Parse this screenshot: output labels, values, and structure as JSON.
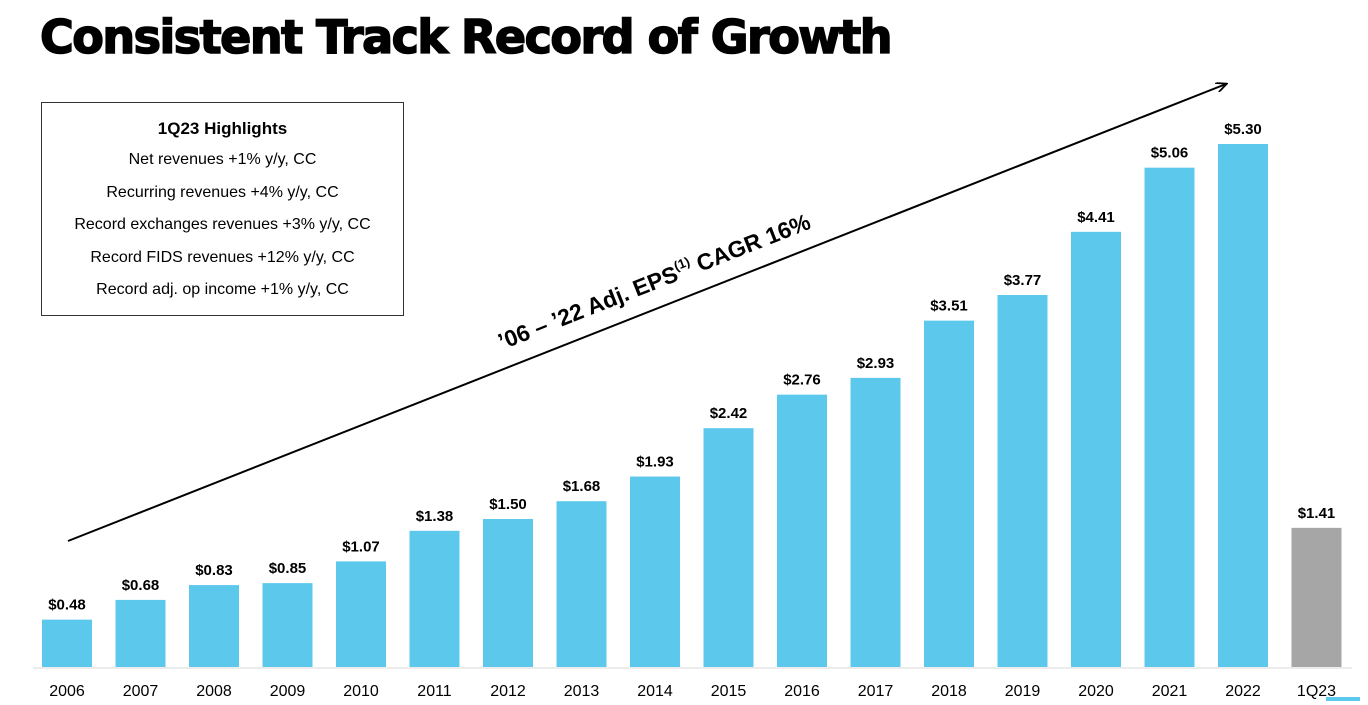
{
  "title": "Consistent Track Record of Growth",
  "highlights": {
    "heading": "1Q23 Highlights",
    "items": [
      "Net revenues +1% y/y, CC",
      "Recurring revenues +4% y/y, CC",
      "Record exchanges revenues +3% y/y, CC",
      "Record FIDS revenues +12% y/y, CC",
      "Record adj. op income +1% y/y, CC"
    ]
  },
  "annotation": {
    "text_main": "’06 – ’22 Adj. EPS",
    "superscript": "(1)",
    "text_tail": " CAGR 16%"
  },
  "colors": {
    "bar": "#5bc8ec",
    "highlight_bar": "#a6a6a6",
    "text": "#000000"
  },
  "chart_data": {
    "type": "bar",
    "categories": [
      "2006",
      "2007",
      "2008",
      "2009",
      "2010",
      "2011",
      "2012",
      "2013",
      "2014",
      "2015",
      "2016",
      "2017",
      "2018",
      "2019",
      "2020",
      "2021",
      "2022",
      "1Q23"
    ],
    "values": [
      0.48,
      0.68,
      0.83,
      0.85,
      1.07,
      1.38,
      1.5,
      1.68,
      1.93,
      2.42,
      2.76,
      2.93,
      3.51,
      3.77,
      4.41,
      5.06,
      5.3,
      1.41
    ],
    "data_labels": [
      "$0.48",
      "$0.68",
      "$0.83",
      "$0.85",
      "$1.07",
      "$1.38",
      "$1.50",
      "$1.68",
      "$1.93",
      "$2.42",
      "$2.76",
      "$2.93",
      "$3.51",
      "$3.77",
      "$4.41",
      "$5.06",
      "$5.30",
      "$1.41"
    ],
    "highlighted_category": "1Q23",
    "ylim": [
      0,
      5.3
    ],
    "grid": false,
    "legend": "none"
  }
}
